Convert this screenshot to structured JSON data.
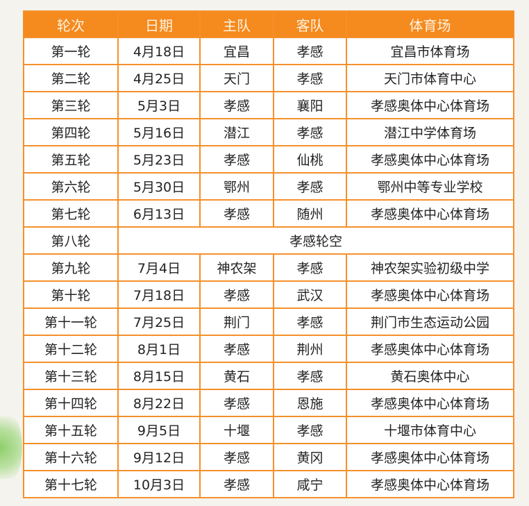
{
  "accent_color": "#f58a1f",
  "headers": [
    "轮次",
    "日期",
    "主队",
    "客队",
    "体育场"
  ],
  "rows": [
    [
      "第一轮",
      "4月18日",
      "宜昌",
      "孝感",
      "宜昌市体育场"
    ],
    [
      "第二轮",
      "4月25日",
      "天门",
      "孝感",
      "天门市体育中心"
    ],
    [
      "第三轮",
      "5月3日",
      "孝感",
      "襄阳",
      "孝感奥体中心体育场"
    ],
    [
      "第四轮",
      "5月16日",
      "潜江",
      "孝感",
      "潜江中学体育场"
    ],
    [
      "第五轮",
      "5月23日",
      "孝感",
      "仙桃",
      "孝感奥体中心体育场"
    ],
    [
      "第六轮",
      "5月30日",
      "鄂州",
      "孝感",
      "鄂州中等专业学校"
    ],
    [
      "第七轮",
      "6月13日",
      "孝感",
      "随州",
      "孝感奥体中心体育场"
    ],
    [
      "第八轮",
      "孝感轮空"
    ],
    [
      "第九轮",
      "7月4日",
      "神农架",
      "孝感",
      "神农架实验初级中学"
    ],
    [
      "第十轮",
      "7月18日",
      "孝感",
      "武汉",
      "孝感奥体中心体育场"
    ],
    [
      "第十一轮",
      "7月25日",
      "荆门",
      "孝感",
      "荆门市生态运动公园"
    ],
    [
      "第十二轮",
      "8月1日",
      "孝感",
      "荆州",
      "孝感奥体中心体育场"
    ],
    [
      "第十三轮",
      "8月15日",
      "黄石",
      "孝感",
      "黄石奥体中心"
    ],
    [
      "第十四轮",
      "8月22日",
      "孝感",
      "恩施",
      "孝感奥体中心体育场"
    ],
    [
      "第十五轮",
      "9月5日",
      "十堰",
      "孝感",
      "十堰市体育中心"
    ],
    [
      "第十六轮",
      "9月12日",
      "孝感",
      "黄冈",
      "孝感奥体中心体育场"
    ],
    [
      "第十七轮",
      "10月3日",
      "孝感",
      "咸宁",
      "孝感奥体中心体育场"
    ]
  ]
}
